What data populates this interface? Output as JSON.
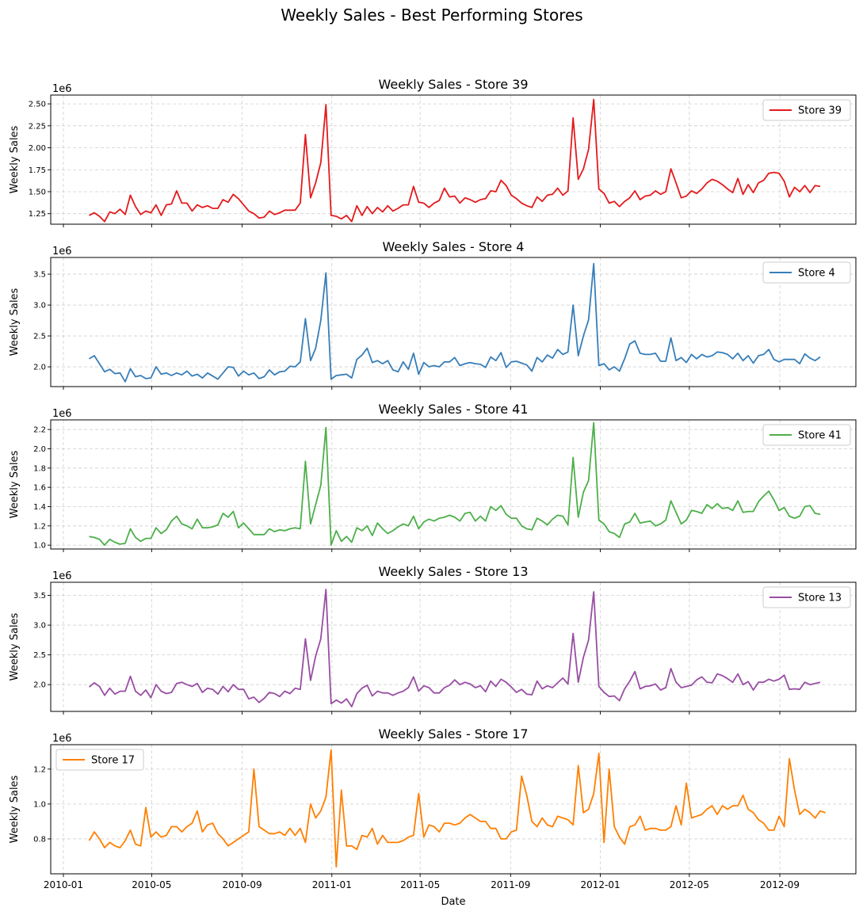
{
  "suptitle": "Weekly Sales - Best Performing Stores",
  "x_label": "Date",
  "x_ticks": [
    "2010-01",
    "2010-05",
    "2010-09",
    "2011-01",
    "2011-05",
    "2011-09",
    "2012-01",
    "2012-05",
    "2012-09"
  ],
  "chart_data": [
    {
      "type": "line",
      "title": "Weekly Sales - Store 39",
      "ylabel": "Weekly Sales",
      "offset_label": "1e6",
      "legend_loc": "upper right",
      "color": "#e41a1c",
      "x_start": "2010-02-05",
      "x_step_days": 7,
      "ylim": [
        1.13,
        2.6
      ],
      "yticks": [
        1.25,
        1.5,
        1.75,
        2.0,
        2.25,
        2.5
      ],
      "ytick_labels": [
        "1.25",
        "1.50",
        "1.75",
        "2.00",
        "2.25",
        "2.50"
      ],
      "series": [
        {
          "name": "Store 39",
          "values": [
            1.23,
            1.26,
            1.22,
            1.16,
            1.27,
            1.25,
            1.3,
            1.24,
            1.46,
            1.33,
            1.24,
            1.28,
            1.26,
            1.35,
            1.23,
            1.35,
            1.36,
            1.51,
            1.37,
            1.37,
            1.28,
            1.35,
            1.32,
            1.34,
            1.31,
            1.31,
            1.41,
            1.38,
            1.47,
            1.42,
            1.35,
            1.28,
            1.25,
            1.2,
            1.21,
            1.28,
            1.24,
            1.26,
            1.29,
            1.29,
            1.29,
            1.37,
            2.15,
            1.43,
            1.6,
            1.83,
            2.49,
            1.23,
            1.22,
            1.19,
            1.23,
            1.16,
            1.34,
            1.23,
            1.33,
            1.25,
            1.32,
            1.27,
            1.34,
            1.28,
            1.31,
            1.35,
            1.35,
            1.56,
            1.38,
            1.37,
            1.32,
            1.37,
            1.4,
            1.54,
            1.44,
            1.45,
            1.37,
            1.43,
            1.41,
            1.38,
            1.41,
            1.42,
            1.51,
            1.5,
            1.63,
            1.57,
            1.46,
            1.42,
            1.37,
            1.34,
            1.32,
            1.44,
            1.39,
            1.46,
            1.47,
            1.54,
            1.46,
            1.51,
            2.34,
            1.64,
            1.76,
            1.98,
            2.55,
            1.53,
            1.48,
            1.37,
            1.39,
            1.33,
            1.39,
            1.43,
            1.51,
            1.41,
            1.45,
            1.46,
            1.51,
            1.47,
            1.5,
            1.76,
            1.6,
            1.43,
            1.45,
            1.51,
            1.48,
            1.53,
            1.6,
            1.64,
            1.62,
            1.58,
            1.53,
            1.49,
            1.65,
            1.47,
            1.58,
            1.49,
            1.6,
            1.63,
            1.71,
            1.72,
            1.71,
            1.62,
            1.44,
            1.55,
            1.5,
            1.57,
            1.49,
            1.57,
            1.56
          ]
        }
      ]
    },
    {
      "type": "line",
      "title": "Weekly Sales - Store 4",
      "ylabel": "Weekly Sales",
      "offset_label": "1e6",
      "legend_loc": "upper right",
      "color": "#377eb8",
      "x_start": "2010-02-05",
      "x_step_days": 7,
      "ylim": [
        1.68,
        3.77
      ],
      "yticks": [
        2.0,
        2.5,
        3.0,
        3.5
      ],
      "ytick_labels": [
        "2.0",
        "2.5",
        "3.0",
        "3.5"
      ],
      "series": [
        {
          "name": "Store 4",
          "values": [
            2.13,
            2.18,
            2.05,
            1.92,
            1.96,
            1.89,
            1.9,
            1.76,
            1.97,
            1.84,
            1.86,
            1.81,
            1.82,
            2.0,
            1.88,
            1.9,
            1.86,
            1.9,
            1.87,
            1.93,
            1.85,
            1.88,
            1.82,
            1.9,
            1.85,
            1.8,
            1.9,
            2.0,
            1.99,
            1.85,
            1.93,
            1.87,
            1.9,
            1.81,
            1.84,
            1.95,
            1.87,
            1.92,
            1.93,
            2.01,
            2.0,
            2.08,
            2.78,
            2.1,
            2.3,
            2.75,
            3.52,
            1.8,
            1.86,
            1.87,
            1.88,
            1.82,
            2.12,
            2.19,
            2.3,
            2.07,
            2.1,
            2.05,
            2.1,
            1.95,
            1.92,
            2.08,
            1.96,
            2.22,
            1.88,
            2.07,
            2.0,
            2.02,
            2.0,
            2.08,
            2.08,
            2.15,
            2.02,
            2.05,
            2.07,
            2.05,
            2.04,
            1.99,
            2.16,
            2.1,
            2.23,
            1.99,
            2.08,
            2.09,
            2.06,
            2.03,
            1.93,
            2.15,
            2.08,
            2.19,
            2.14,
            2.28,
            2.2,
            2.24,
            3.0,
            2.18,
            2.5,
            2.76,
            3.67,
            2.02,
            2.05,
            1.95,
            2.0,
            1.93,
            2.13,
            2.37,
            2.42,
            2.22,
            2.2,
            2.2,
            2.22,
            2.09,
            2.09,
            2.47,
            2.1,
            2.15,
            2.07,
            2.2,
            2.13,
            2.2,
            2.16,
            2.18,
            2.24,
            2.23,
            2.2,
            2.13,
            2.22,
            2.1,
            2.18,
            2.06,
            2.18,
            2.2,
            2.28,
            2.12,
            2.08,
            2.12,
            2.12,
            2.12,
            2.05,
            2.21,
            2.14,
            2.1,
            2.16
          ]
        }
      ]
    },
    {
      "type": "line",
      "title": "Weekly Sales - Store 41",
      "ylabel": "Weekly Sales",
      "offset_label": "1e6",
      "legend_loc": "upper right",
      "color": "#4daf4a",
      "x_start": "2010-02-05",
      "x_step_days": 7,
      "ylim": [
        0.96,
        2.3
      ],
      "yticks": [
        1.0,
        1.2,
        1.4,
        1.6,
        1.8,
        2.0,
        2.2
      ],
      "ytick_labels": [
        "1.0",
        "1.2",
        "1.4",
        "1.6",
        "1.8",
        "2.0",
        "2.2"
      ],
      "series": [
        {
          "name": "Store 41",
          "values": [
            1.09,
            1.08,
            1.06,
            1.0,
            1.06,
            1.03,
            1.01,
            1.02,
            1.17,
            1.08,
            1.04,
            1.07,
            1.07,
            1.18,
            1.12,
            1.16,
            1.25,
            1.3,
            1.22,
            1.2,
            1.17,
            1.27,
            1.18,
            1.18,
            1.19,
            1.21,
            1.33,
            1.29,
            1.35,
            1.18,
            1.23,
            1.17,
            1.11,
            1.11,
            1.11,
            1.17,
            1.14,
            1.16,
            1.15,
            1.17,
            1.18,
            1.17,
            1.87,
            1.22,
            1.42,
            1.62,
            2.22,
            1.0,
            1.15,
            1.04,
            1.09,
            1.03,
            1.18,
            1.15,
            1.2,
            1.1,
            1.23,
            1.17,
            1.12,
            1.15,
            1.19,
            1.22,
            1.2,
            1.3,
            1.17,
            1.24,
            1.27,
            1.25,
            1.28,
            1.29,
            1.31,
            1.29,
            1.25,
            1.33,
            1.34,
            1.25,
            1.3,
            1.25,
            1.4,
            1.36,
            1.41,
            1.32,
            1.28,
            1.28,
            1.2,
            1.17,
            1.16,
            1.28,
            1.25,
            1.21,
            1.27,
            1.31,
            1.3,
            1.21,
            1.91,
            1.29,
            1.55,
            1.67,
            2.27,
            1.26,
            1.22,
            1.14,
            1.12,
            1.08,
            1.22,
            1.24,
            1.33,
            1.23,
            1.24,
            1.25,
            1.2,
            1.22,
            1.26,
            1.46,
            1.34,
            1.22,
            1.26,
            1.36,
            1.35,
            1.33,
            1.42,
            1.38,
            1.43,
            1.38,
            1.39,
            1.36,
            1.46,
            1.34,
            1.35,
            1.35,
            1.45,
            1.51,
            1.56,
            1.47,
            1.36,
            1.39,
            1.3,
            1.28,
            1.3,
            1.4,
            1.41,
            1.33,
            1.32
          ]
        }
      ]
    },
    {
      "type": "line",
      "title": "Weekly Sales - Store 13",
      "ylabel": "Weekly Sales",
      "offset_label": "1e6",
      "legend_loc": "upper right",
      "color": "#984ea3",
      "x_start": "2010-02-05",
      "x_step_days": 7,
      "ylim": [
        1.55,
        3.72
      ],
      "yticks": [
        2.0,
        2.5,
        3.0,
        3.5
      ],
      "ytick_labels": [
        "2.0",
        "2.5",
        "3.0",
        "3.5"
      ],
      "series": [
        {
          "name": "Store 13",
          "values": [
            1.96,
            2.03,
            1.97,
            1.82,
            1.94,
            1.84,
            1.89,
            1.89,
            2.14,
            1.89,
            1.82,
            1.91,
            1.78,
            2.0,
            1.89,
            1.85,
            1.87,
            2.02,
            2.04,
            2.0,
            1.97,
            2.02,
            1.87,
            1.94,
            1.92,
            1.84,
            1.97,
            1.88,
            2.0,
            1.92,
            1.92,
            1.76,
            1.79,
            1.7,
            1.77,
            1.87,
            1.85,
            1.8,
            1.89,
            1.85,
            1.94,
            1.92,
            2.77,
            2.07,
            2.48,
            2.77,
            3.6,
            1.68,
            1.74,
            1.69,
            1.76,
            1.63,
            1.85,
            1.94,
            1.99,
            1.81,
            1.89,
            1.86,
            1.86,
            1.82,
            1.86,
            1.89,
            1.95,
            2.13,
            1.89,
            1.98,
            1.95,
            1.86,
            1.86,
            1.95,
            1.99,
            2.08,
            2.0,
            2.04,
            2.01,
            1.95,
            1.98,
            1.88,
            2.06,
            1.97,
            2.09,
            2.04,
            1.96,
            1.87,
            1.92,
            1.84,
            1.83,
            2.06,
            1.93,
            1.98,
            1.95,
            2.03,
            2.11,
            2.01,
            2.86,
            2.04,
            2.46,
            2.75,
            3.56,
            1.97,
            1.87,
            1.8,
            1.81,
            1.73,
            1.93,
            2.06,
            2.22,
            1.93,
            1.97,
            1.98,
            2.01,
            1.91,
            1.95,
            2.27,
            2.04,
            1.95,
            1.97,
            1.99,
            2.08,
            2.13,
            2.04,
            2.03,
            2.18,
            2.15,
            2.1,
            2.04,
            2.18,
            2.0,
            2.05,
            1.91,
            2.04,
            2.04,
            2.09,
            2.06,
            2.09,
            2.16,
            1.92,
            1.93,
            1.92,
            2.04,
            2.0,
            2.02,
            2.04
          ]
        }
      ]
    },
    {
      "type": "line",
      "title": "Weekly Sales - Store 17",
      "ylabel": "Weekly Sales",
      "offset_label": "1e6",
      "legend_loc": "upper left",
      "color": "#ff7f00",
      "x_start": "2010-02-05",
      "x_step_days": 7,
      "ylim": [
        0.6,
        1.34
      ],
      "yticks": [
        0.8,
        1.0,
        1.2
      ],
      "ytick_labels": [
        "0.8",
        "1.0",
        "1.2"
      ],
      "series": [
        {
          "name": "Store 17",
          "values": [
            0.79,
            0.84,
            0.8,
            0.75,
            0.78,
            0.76,
            0.75,
            0.79,
            0.85,
            0.77,
            0.76,
            0.98,
            0.81,
            0.84,
            0.81,
            0.82,
            0.87,
            0.87,
            0.84,
            0.87,
            0.89,
            0.96,
            0.84,
            0.88,
            0.89,
            0.83,
            0.8,
            0.76,
            0.78,
            0.8,
            0.82,
            0.84,
            1.2,
            0.87,
            0.85,
            0.83,
            0.83,
            0.84,
            0.82,
            0.86,
            0.82,
            0.86,
            0.78,
            1.0,
            0.92,
            0.96,
            1.04,
            1.31,
            0.64,
            1.08,
            0.76,
            0.76,
            0.74,
            0.82,
            0.81,
            0.86,
            0.77,
            0.82,
            0.78,
            0.78,
            0.78,
            0.79,
            0.81,
            0.82,
            1.06,
            0.81,
            0.88,
            0.87,
            0.84,
            0.89,
            0.89,
            0.88,
            0.89,
            0.92,
            0.94,
            0.92,
            0.9,
            0.9,
            0.86,
            0.86,
            0.8,
            0.8,
            0.84,
            0.85,
            1.16,
            1.05,
            0.9,
            0.87,
            0.92,
            0.88,
            0.87,
            0.93,
            0.92,
            0.91,
            0.88,
            1.22,
            0.95,
            0.97,
            1.06,
            1.29,
            0.78,
            1.2,
            0.87,
            0.81,
            0.77,
            0.87,
            0.88,
            0.93,
            0.85,
            0.86,
            0.86,
            0.85,
            0.85,
            0.87,
            0.99,
            0.88,
            1.12,
            0.92,
            0.93,
            0.94,
            0.97,
            0.99,
            0.94,
            0.99,
            0.97,
            0.99,
            0.99,
            1.05,
            0.97,
            0.95,
            0.91,
            0.89,
            0.85,
            0.85,
            0.93,
            0.87,
            1.26,
            1.08,
            0.94,
            0.97,
            0.95,
            0.92,
            0.96,
            0.95
          ]
        }
      ]
    }
  ]
}
